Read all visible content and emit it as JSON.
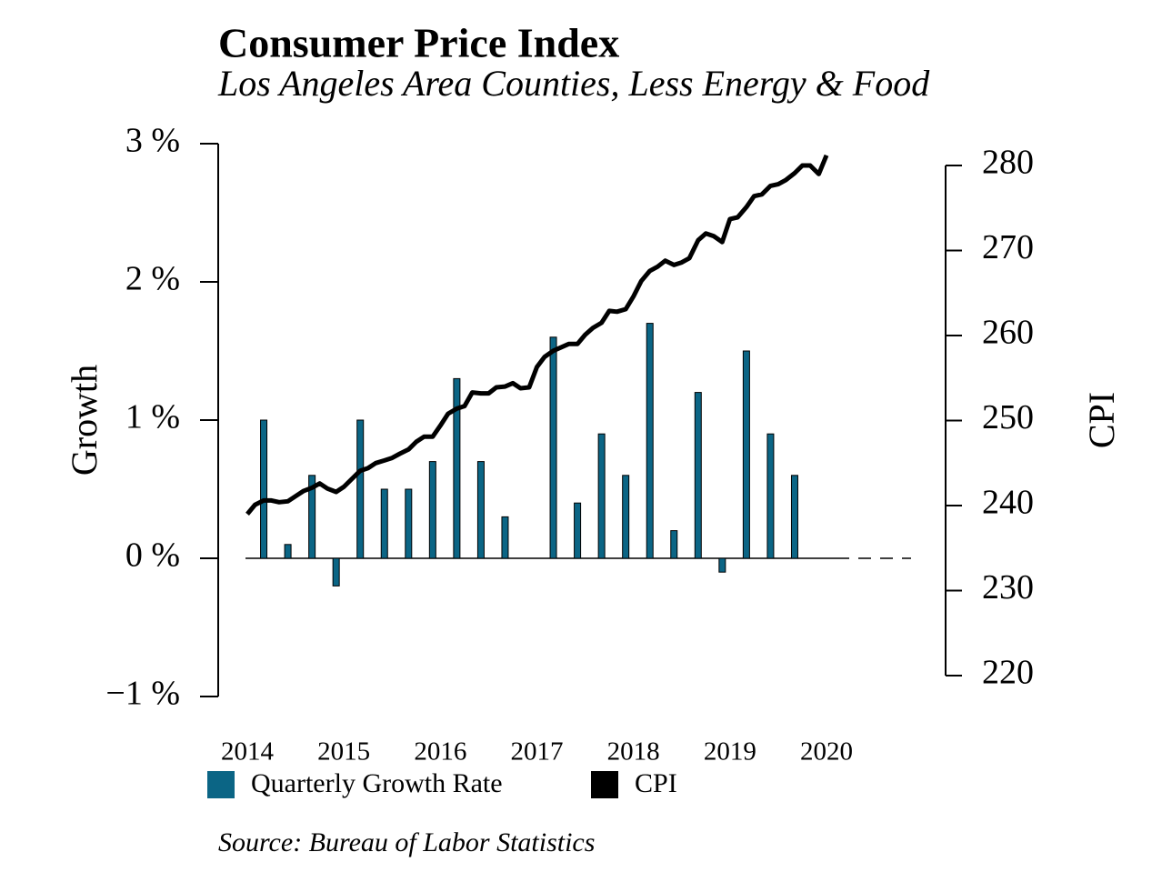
{
  "chart_data": {
    "type": "bar",
    "title": "Consumer Price Index",
    "subtitle": "Los Angeles Area Counties, Less Energy & Food",
    "ylabel": "Growth",
    "y2label": "CPI",
    "source": "Source: Bureau of Labor Statistics",
    "xlim": [
      2014,
      2020
    ],
    "xticks": [
      2014,
      2015,
      2016,
      2017,
      2018,
      2019,
      2020
    ],
    "ylim": [
      -1,
      3
    ],
    "yticks": [
      {
        "value": -1,
        "label": "−1 %"
      },
      {
        "value": 0,
        "label": "0 %"
      },
      {
        "value": 1,
        "label": "1 %"
      },
      {
        "value": 2,
        "label": "2 %"
      },
      {
        "value": 3,
        "label": "3 %"
      }
    ],
    "y2lim": [
      220,
      280
    ],
    "y2ticks": [
      220,
      230,
      240,
      250,
      260,
      270,
      280
    ],
    "series": [
      {
        "name": "Quarterly Growth Rate",
        "type": "bar",
        "color": "#0b6585",
        "x": [
          2014.17,
          2014.42,
          2014.67,
          2014.92,
          2015.17,
          2015.42,
          2015.67,
          2015.92,
          2016.17,
          2016.42,
          2016.67,
          2016.92,
          2017.17,
          2017.42,
          2017.67,
          2017.92,
          2018.17,
          2018.42,
          2018.67,
          2018.92,
          2019.17,
          2019.42,
          2019.67
        ],
        "values": [
          1.0,
          0.1,
          0.6,
          -0.2,
          1.0,
          0.5,
          0.5,
          0.7,
          1.3,
          0.7,
          0.3,
          0,
          1.6,
          0.4,
          0.9,
          0.6,
          1.7,
          0.2,
          1.2,
          -0.1,
          1.5,
          0.9,
          0.6
        ]
      },
      {
        "name": "CPI",
        "type": "line",
        "axis": "y2",
        "color": "#000000",
        "x": [
          2014.0,
          2014.08,
          2014.17,
          2014.25,
          2014.33,
          2014.42,
          2014.5,
          2014.58,
          2014.67,
          2014.75,
          2014.83,
          2014.92,
          2015.0,
          2015.08,
          2015.17,
          2015.25,
          2015.33,
          2015.42,
          2015.5,
          2015.58,
          2015.67,
          2015.75,
          2015.83,
          2015.92,
          2016.0,
          2016.08,
          2016.17,
          2016.25,
          2016.33,
          2016.42,
          2016.5,
          2016.58,
          2016.67,
          2016.75,
          2016.83,
          2016.92,
          2017.0,
          2017.08,
          2017.17,
          2017.25,
          2017.33,
          2017.42,
          2017.5,
          2017.58,
          2017.67,
          2017.75,
          2017.83,
          2017.92,
          2018.0,
          2018.08,
          2018.17,
          2018.25,
          2018.33,
          2018.42,
          2018.5,
          2018.58,
          2018.67,
          2018.75,
          2018.83,
          2018.92,
          2019.0,
          2019.08,
          2019.17,
          2019.25,
          2019.33,
          2019.42,
          2019.5,
          2019.58,
          2019.67,
          2019.75,
          2019.83,
          2019.92,
          2020.0
        ],
        "values": [
          239.0,
          240.1,
          240.6,
          240.6,
          240.4,
          240.5,
          241.1,
          241.7,
          242.1,
          242.6,
          242.0,
          241.6,
          242.2,
          243.1,
          244.1,
          244.4,
          245.0,
          245.3,
          245.6,
          246.1,
          246.6,
          247.5,
          248.1,
          248.1,
          249.4,
          250.8,
          251.4,
          251.7,
          253.3,
          253.2,
          253.2,
          253.9,
          254.0,
          254.4,
          253.8,
          253.9,
          256.3,
          257.5,
          258.2,
          258.6,
          259.0,
          259.0,
          260.1,
          260.9,
          261.5,
          262.9,
          262.8,
          263.1,
          264.6,
          266.4,
          267.6,
          268.1,
          268.8,
          268.3,
          268.6,
          269.1,
          271.2,
          272.0,
          271.7,
          271.0,
          273.7,
          273.9,
          275.1,
          276.4,
          276.6,
          277.6,
          277.8,
          278.3,
          279.1,
          280.0,
          280.0,
          279.0,
          281.2
        ]
      }
    ]
  }
}
